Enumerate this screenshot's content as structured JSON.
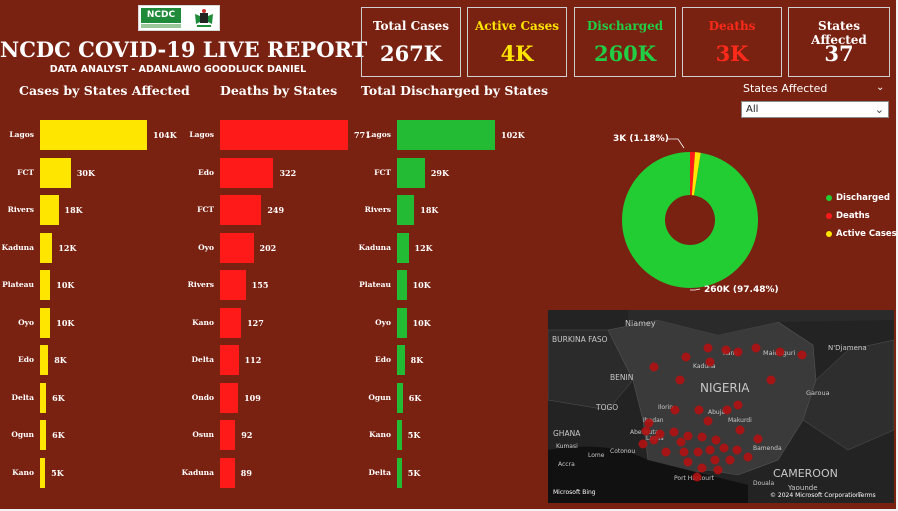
{
  "header": {
    "logo_text": "NCDC",
    "title": "NCDC COVID-19 LIVE REPORT",
    "subtitle": "DATA ANALYST - ADANLAWO GOODLUCK DANIEL"
  },
  "kpis": [
    {
      "label": "Total Cases",
      "value": "267K",
      "color": "#ffffff"
    },
    {
      "label": "Active Cases",
      "value": "4K",
      "color": "#ffe600"
    },
    {
      "label": "Discharged",
      "value": "260K",
      "color": "#22cc44"
    },
    {
      "label": "Deaths",
      "value": "3K",
      "color": "#ff2a1a"
    },
    {
      "label": "States Affected",
      "value": "37",
      "color": "#ffffff"
    }
  ],
  "colors": {
    "background": "#7a2212",
    "cases": "#ffe600",
    "deaths": "#ff1a1a",
    "discharged": "#22bb33"
  },
  "slicer": {
    "label": "States Affected",
    "value": "All"
  },
  "chart_data": [
    {
      "type": "bar",
      "orientation": "horizontal",
      "title": "Cases by States Affected",
      "categories": [
        "Lagos",
        "FCT",
        "Rivers",
        "Kaduna",
        "Plateau",
        "Oyo",
        "Edo",
        "Delta",
        "Ogun",
        "Kano"
      ],
      "values": [
        104000,
        30000,
        18000,
        12000,
        10000,
        10000,
        8000,
        6000,
        6000,
        5000
      ],
      "data_labels": [
        "104K",
        "30K",
        "18K",
        "12K",
        "10K",
        "10K",
        "8K",
        "6K",
        "6K",
        "5K"
      ],
      "color": "#ffe600"
    },
    {
      "type": "bar",
      "orientation": "horizontal",
      "title": "Deaths by States",
      "categories": [
        "Lagos",
        "Edo",
        "FCT",
        "Oyo",
        "Rivers",
        "Kano",
        "Delta",
        "Ondo",
        "Osun",
        "Kaduna"
      ],
      "values": [
        771,
        322,
        249,
        202,
        155,
        127,
        112,
        109,
        92,
        89
      ],
      "data_labels": [
        "771",
        "322",
        "249",
        "202",
        "155",
        "127",
        "112",
        "109",
        "92",
        "89"
      ],
      "color": "#ff1a1a"
    },
    {
      "type": "bar",
      "orientation": "horizontal",
      "title": "Total Discharged by States",
      "categories": [
        "Lagos",
        "FCT",
        "Rivers",
        "Kaduna",
        "Plateau",
        "Oyo",
        "Edo",
        "Ogun",
        "Kano",
        "Delta"
      ],
      "values": [
        102000,
        29000,
        18000,
        12000,
        10000,
        10000,
        8000,
        6000,
        5000,
        5000
      ],
      "data_labels": [
        "102K",
        "29K",
        "18K",
        "12K",
        "10K",
        "10K",
        "8K",
        "6K",
        "5K",
        "5K"
      ],
      "color": "#22bb33"
    },
    {
      "type": "pie",
      "variant": "donut",
      "categories": [
        "Discharged",
        "Deaths",
        "Active Cases"
      ],
      "values": [
        97.48,
        1.18,
        1.34
      ],
      "colors": [
        "#22cc33",
        "#ff1a1a",
        "#ffe600"
      ],
      "data_labels": {
        "Discharged": "260K (97.48%)",
        "Deaths": "3K (1.18%)"
      },
      "legend": [
        "Discharged",
        "Deaths",
        "Active Cases"
      ],
      "legend_position": "right"
    }
  ],
  "map": {
    "labels": [
      "Niamey",
      "BURKINA FASO",
      "BENIN",
      "TOGO",
      "GHANA",
      "NIGERIA",
      "Abuja",
      "Kaduna",
      "Kano",
      "Maiduguri",
      "N'Djamena",
      "Garoua",
      "CAMEROON",
      "Yaounde",
      "Makurdi",
      "Ilorin",
      "Ibadan",
      "Lagos",
      "Abeokuta",
      "Port Harcourt",
      "Bamenda",
      "Douala",
      "Accra",
      "Lome",
      "Cotonou",
      "Kumasi"
    ],
    "credits": {
      "brand": "Microsoft Bing",
      "copyright": "© 2024 Microsoft Corporation",
      "terms": "Terms"
    }
  }
}
